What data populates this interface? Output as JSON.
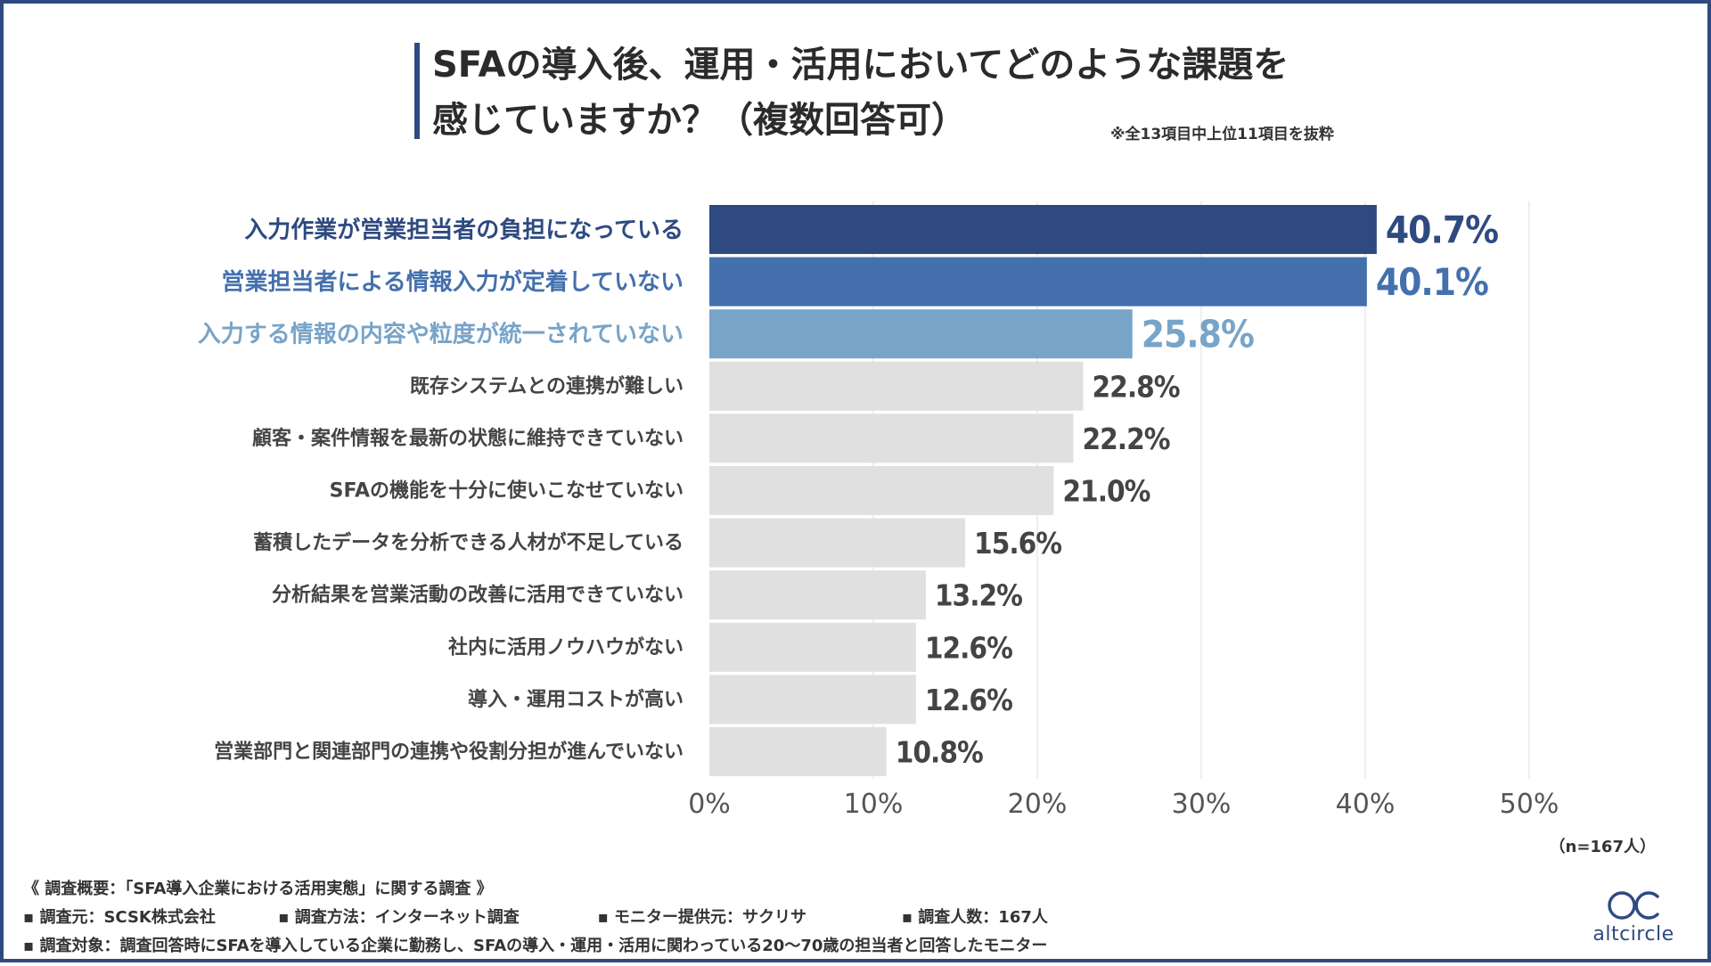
{
  "title": {
    "line1": "SFAの導入後、運用・活用においてどのような課題を",
    "line2": "感じていますか？（複数回答可）",
    "note": "※全13項目中上位11項目を抜粋"
  },
  "chart_data": {
    "type": "bar",
    "orientation": "horizontal",
    "categories": [
      "入力作業が営業担当者の負担になっている",
      "営業担当者による情報入力が定着していない",
      "入力する情報の内容や粒度が統一されていない",
      "既存システムとの連携が難しい",
      "顧客・案件情報を最新の状態に維持できていない",
      "SFAの機能を十分に使いこなせていない",
      "蓄積したデータを分析できる人材が不足している",
      "分析結果を営業活動の改善に活用できていない",
      "社内に活用ノウハウがない",
      "導入・運用コストが高い",
      "営業部門と関連部門の連携や役割分担が進んでいない"
    ],
    "values": [
      40.7,
      40.1,
      25.8,
      22.8,
      22.2,
      21.0,
      15.6,
      13.2,
      12.6,
      12.6,
      10.8
    ],
    "value_labels": [
      "40.7%",
      "40.1%",
      "25.8%",
      "22.8%",
      "22.2%",
      "21.0%",
      "15.6%",
      "13.2%",
      "12.6%",
      "12.6%",
      "10.8%"
    ],
    "bar_colors": [
      "#2e4a80",
      "#4470ad",
      "#78a4c8",
      "#e0e0e0",
      "#e0e0e0",
      "#e0e0e0",
      "#e0e0e0",
      "#e0e0e0",
      "#e0e0e0",
      "#e0e0e0",
      "#e0e0e0"
    ],
    "label_colors": [
      "#2e4a80",
      "#4470ad",
      "#78a4c8",
      "#444444",
      "#444444",
      "#444444",
      "#444444",
      "#444444",
      "#444444",
      "#444444",
      "#444444"
    ],
    "xlim": [
      0,
      50
    ],
    "x_ticks": [
      0,
      10,
      20,
      30,
      40,
      50
    ],
    "x_tick_labels": [
      "0%",
      "10%",
      "20%",
      "30%",
      "40%",
      "50%"
    ],
    "grid": true,
    "sample_size": "（n=167人）"
  },
  "footer": {
    "overview": "《 調査概要：「SFA導入企業における活用実態」に関する調査 》",
    "source": "▪ 調査元：SCSK株式会社",
    "method": "▪ 調査方法：インターネット調査",
    "provider": "▪ モニター提供元：サクリサ",
    "count": "▪ 調査人数：167人",
    "target": "▪ 調査対象：調査回答時にSFAを導入している企業に勤務し、SFAの導入・運用・活用に関わっている20〜70歳の担当者と回答したモニター"
  },
  "logo": {
    "text": "altcircle",
    "color": "#2e4a80",
    "icon": "double-circle-logo"
  }
}
